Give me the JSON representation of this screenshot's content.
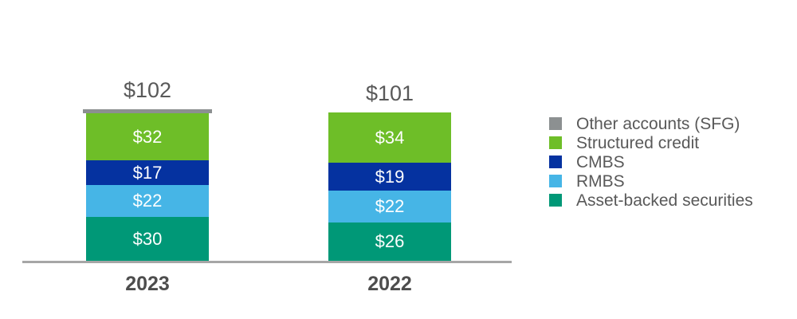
{
  "chart_data": {
    "type": "stacked-bar",
    "title": "",
    "categories": [
      "2023",
      "2022"
    ],
    "totals": [
      102,
      101
    ],
    "total_labels": [
      "$102",
      "$101"
    ],
    "unit_prefix": "$",
    "series": [
      {
        "name": "Other accounts (SFG)",
        "color": "#8C9091",
        "values": [
          1,
          0
        ],
        "labels": [
          "",
          ""
        ]
      },
      {
        "name": "Structured credit",
        "color": "#6EBE28",
        "values": [
          32,
          34
        ],
        "labels": [
          "$32",
          "$34"
        ]
      },
      {
        "name": "CMBS",
        "color": "#0532A0",
        "values": [
          17,
          19
        ],
        "labels": [
          "$17",
          "$19"
        ]
      },
      {
        "name": "RMBS",
        "color": "#46B5E6",
        "values": [
          22,
          22
        ],
        "labels": [
          "$22",
          "$22"
        ]
      },
      {
        "name": "Asset-backed securities",
        "color": "#009877",
        "values": [
          30,
          26
        ],
        "labels": [
          "$30",
          "$26"
        ]
      }
    ],
    "legend_position": "right",
    "legend_order_matches_stack_top_to_bottom": true,
    "axis": {
      "baseline_color": "#A6A6A6",
      "gridlines": false,
      "y_ticks": "none"
    },
    "text_colors": {
      "total": "#595959",
      "category": "#4D4D4D",
      "legend": "#595959",
      "segment": "#FFFFFF"
    }
  }
}
